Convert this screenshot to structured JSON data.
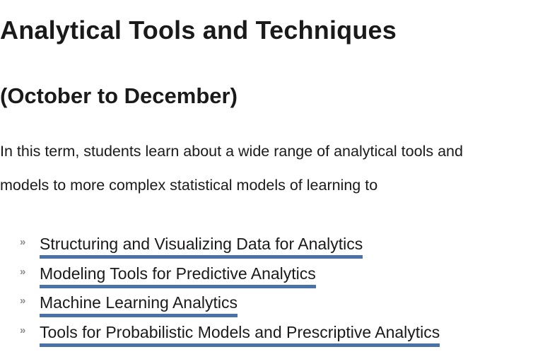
{
  "heading": "Analytical Tools and Techniques",
  "subheading": "(October to December)",
  "intro_lines": [
    "In this term, students learn about a wide range of analytical tools and",
    "models to more complex statistical models of learning to"
  ],
  "links": [
    {
      "label": "Structuring and Visualizing Data for Analytics"
    },
    {
      "label": "Modeling Tools for Predictive Analytics"
    },
    {
      "label": "Machine Learning Analytics"
    },
    {
      "label": "Tools for Probabilistic Models and Prescriptive Analytics"
    }
  ],
  "bullet_glyph": "»",
  "colors": {
    "link_underline": "#4a72a8",
    "text": "#1a1a1a",
    "bullet": "#8a8a8a"
  }
}
